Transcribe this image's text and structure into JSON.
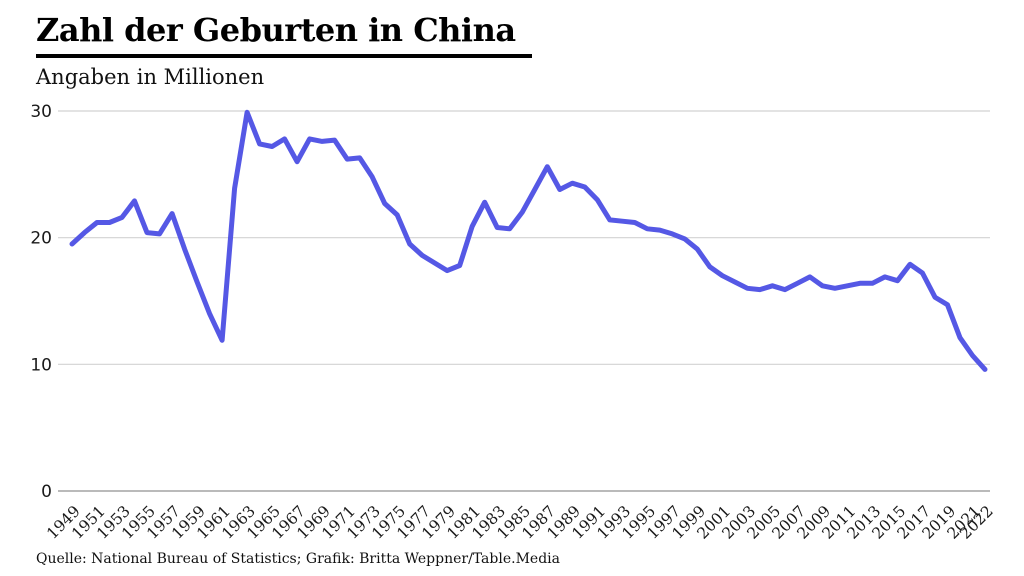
{
  "header": {
    "title": "Zahl der Geburten in China",
    "subtitle": "Angaben in Millionen"
  },
  "footer": {
    "source": "Quelle: National Bureau of Statistics; Grafik: Britta Weppner/Table.Media"
  },
  "chart_data": {
    "type": "line",
    "title": "Zahl der Geburten in China",
    "subtitle": "Angaben in Millionen",
    "series_name": "Geburten in Millionen",
    "x": [
      1949,
      1950,
      1951,
      1952,
      1953,
      1954,
      1955,
      1956,
      1957,
      1958,
      1959,
      1960,
      1961,
      1962,
      1963,
      1964,
      1965,
      1966,
      1967,
      1968,
      1969,
      1970,
      1971,
      1972,
      1973,
      1974,
      1975,
      1976,
      1977,
      1978,
      1979,
      1980,
      1981,
      1982,
      1983,
      1984,
      1985,
      1986,
      1987,
      1988,
      1989,
      1990,
      1991,
      1992,
      1993,
      1994,
      1995,
      1996,
      1997,
      1998,
      1999,
      2000,
      2001,
      2002,
      2003,
      2004,
      2005,
      2006,
      2007,
      2008,
      2009,
      2010,
      2011,
      2012,
      2013,
      2014,
      2015,
      2016,
      2017,
      2018,
      2019,
      2020,
      2021,
      2022
    ],
    "values": [
      19.5,
      20.4,
      21.2,
      21.2,
      21.6,
      22.9,
      20.4,
      20.3,
      21.9,
      19.1,
      16.5,
      14.0,
      11.9,
      23.9,
      29.9,
      27.4,
      27.2,
      27.8,
      26.0,
      27.8,
      27.6,
      27.7,
      26.2,
      26.3,
      24.8,
      22.7,
      21.8,
      19.5,
      18.6,
      18.0,
      17.4,
      17.8,
      20.9,
      22.8,
      20.8,
      20.7,
      22.0,
      23.8,
      25.6,
      23.8,
      24.3,
      24.0,
      23.0,
      21.4,
      21.3,
      21.2,
      20.7,
      20.6,
      20.3,
      19.9,
      19.1,
      17.7,
      17.0,
      16.5,
      16.0,
      15.9,
      16.2,
      15.9,
      16.4,
      16.9,
      16.2,
      16.0,
      16.2,
      16.4,
      16.4,
      16.9,
      16.6,
      17.9,
      17.2,
      15.3,
      14.7,
      12.1,
      10.7,
      9.6
    ],
    "ylim": [
      0,
      30
    ],
    "yticks": [
      0,
      10,
      20,
      30
    ],
    "xtick_labels": [
      "1949",
      "1951",
      "1953",
      "1955",
      "1957",
      "1959",
      "1961",
      "1963",
      "1965",
      "1967",
      "1969",
      "1971",
      "1973",
      "1975",
      "1977",
      "1979",
      "1981",
      "1983",
      "1985",
      "1987",
      "1989",
      "1991",
      "1993",
      "1995",
      "1997",
      "1999",
      "2001",
      "2003",
      "2005",
      "2007",
      "2009",
      "2011",
      "2013",
      "2015",
      "2017",
      "2019",
      "2021",
      "2022"
    ],
    "grid": "horizontal",
    "legend": "none",
    "line_color": "#5558e5",
    "grid_color": "#d2d2d2",
    "baseline_color": "#a3a3a3",
    "label_color": "#1a1a1a"
  }
}
